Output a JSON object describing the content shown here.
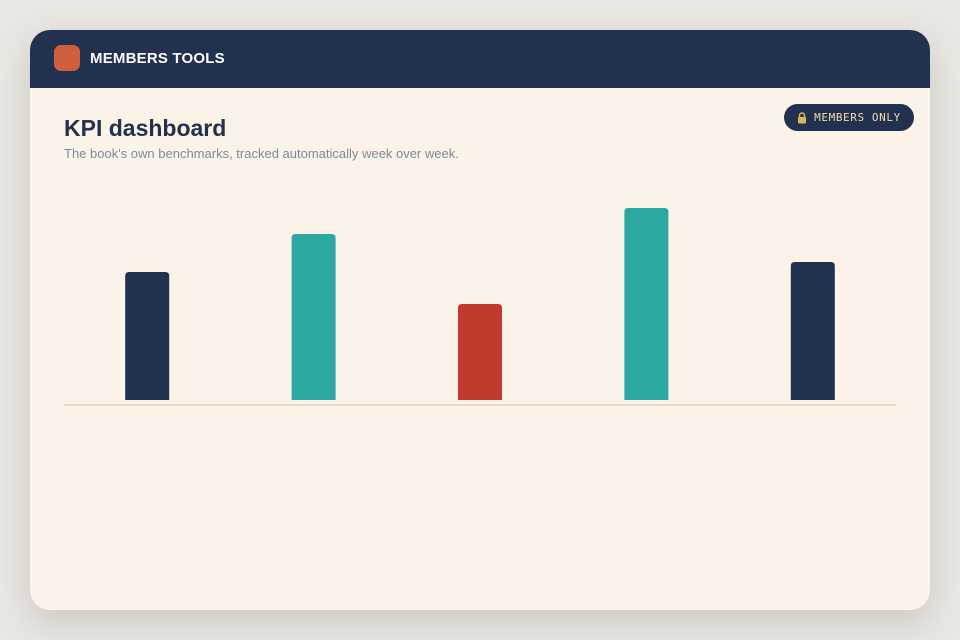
{
  "header": {
    "title": "MEMBERS TOOLS"
  },
  "badge": {
    "label": "MEMBERS ONLY"
  },
  "page": {
    "title": "KPI dashboard",
    "subtitle": "The book's own benchmarks, tracked automatically week over week."
  },
  "chart_data": {
    "type": "bar",
    "categories": [
      null,
      null,
      null,
      null,
      null
    ],
    "values": [
      128,
      166,
      96,
      192,
      138
    ],
    "colors": [
      "#22314f",
      "#2ba8a2",
      "#c0392b",
      "#2ba8a2",
      "#22314f"
    ]
  }
}
